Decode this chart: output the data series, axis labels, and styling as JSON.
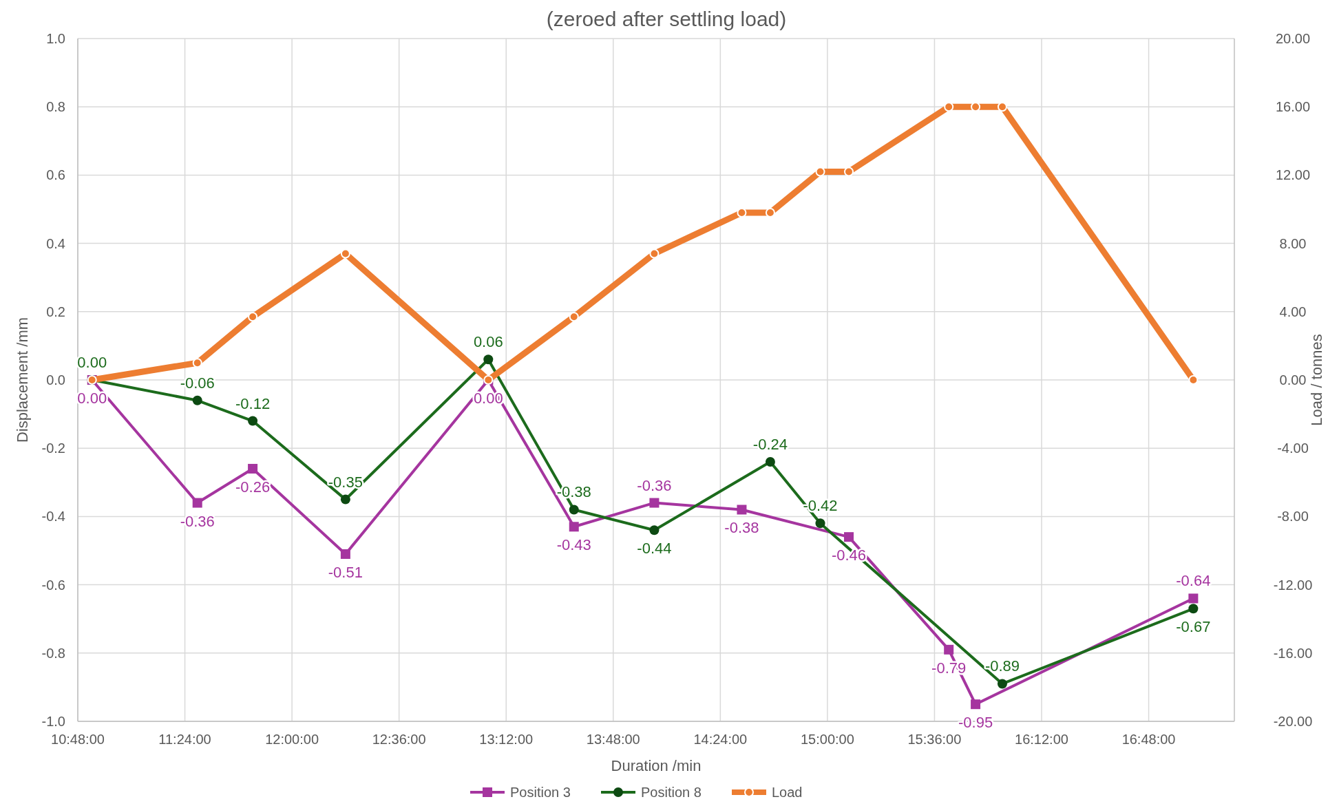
{
  "chart_data": {
    "type": "line",
    "title": "(zeroed after settling load)",
    "xlabel": "Duration /min",
    "ylabel": "Displacement /mm",
    "y2label": "Load / tonnes",
    "xlim": [
      10.8,
      17.28
    ],
    "xticks": [
      {
        "value": 10.8,
        "label": "10:48:00"
      },
      {
        "value": 11.4,
        "label": "11:24:00"
      },
      {
        "value": 12.0,
        "label": "12:00:00"
      },
      {
        "value": 12.6,
        "label": "12:36:00"
      },
      {
        "value": 13.2,
        "label": "13:12:00"
      },
      {
        "value": 13.8,
        "label": "13:48:00"
      },
      {
        "value": 14.4,
        "label": "14:24:00"
      },
      {
        "value": 15.0,
        "label": "15:00:00"
      },
      {
        "value": 15.6,
        "label": "15:36:00"
      },
      {
        "value": 16.2,
        "label": "16:12:00"
      },
      {
        "value": 16.8,
        "label": "16:48:00"
      }
    ],
    "ylim": [
      -1,
      1
    ],
    "yticks": [
      {
        "value": -1,
        "label": "-1.0"
      },
      {
        "value": -0.8,
        "label": "-0.8"
      },
      {
        "value": -0.6,
        "label": "-0.6"
      },
      {
        "value": -0.4,
        "label": "-0.4"
      },
      {
        "value": -0.2,
        "label": "-0.2"
      },
      {
        "value": 0,
        "label": "0.0"
      },
      {
        "value": 0.2,
        "label": "0.2"
      },
      {
        "value": 0.4,
        "label": "0.4"
      },
      {
        "value": 0.6,
        "label": "0.6"
      },
      {
        "value": 0.8,
        "label": "0.8"
      },
      {
        "value": 1,
        "label": "1.0"
      }
    ],
    "y2lim": [
      -20,
      20
    ],
    "y2ticks": [
      {
        "value": -20,
        "label": "-20.00"
      },
      {
        "value": -16,
        "label": "-16.00"
      },
      {
        "value": -12,
        "label": "-12.00"
      },
      {
        "value": -8,
        "label": "-8.00"
      },
      {
        "value": -4,
        "label": "-4.00"
      },
      {
        "value": 0,
        "label": "0.00"
      },
      {
        "value": 4,
        "label": "4.00"
      },
      {
        "value": 8,
        "label": "8.00"
      },
      {
        "value": 12,
        "label": "12.00"
      },
      {
        "value": 16,
        "label": "16.00"
      },
      {
        "value": 20,
        "label": "20.00"
      }
    ],
    "grid": true,
    "legend": "bottom",
    "series": [
      {
        "name": "Position 3",
        "color": "#a5359f",
        "marker": "square",
        "x": [
          10.88,
          11.47,
          11.78,
          12.3,
          13.1,
          13.58,
          14.03,
          14.52,
          15.12,
          15.68,
          15.83,
          17.05
        ],
        "values": [
          0,
          -0.36,
          -0.26,
          -0.51,
          0,
          -0.43,
          -0.36,
          -0.38,
          -0.46,
          -0.79,
          -0.95,
          -0.64
        ],
        "value_labels": [
          "0.00",
          "-0.36",
          "-0.26",
          "-0.51",
          "0.00",
          "-0.43",
          "-0.36",
          "-0.38",
          "-0.46",
          "-0.79",
          "-0.95",
          "-0.64"
        ]
      },
      {
        "name": "Position 8",
        "color": "#1c6b1c",
        "marker": "circle",
        "x": [
          10.88,
          11.47,
          11.78,
          12.3,
          13.1,
          13.58,
          14.03,
          14.68,
          14.96,
          15.98,
          17.05
        ],
        "values": [
          0,
          -0.06,
          -0.12,
          -0.35,
          0.06,
          -0.38,
          -0.44,
          -0.24,
          -0.42,
          -0.89,
          -0.67
        ],
        "value_labels": [
          "0.00",
          "-0.06",
          "-0.12",
          "-0.35",
          "0.06",
          "-0.38",
          "-0.44",
          "-0.24",
          "-0.42",
          "-0.89",
          "-0.67"
        ]
      },
      {
        "name": "Load",
        "color": "#ed7d31",
        "marker": "circle",
        "axis": "y2",
        "x": [
          10.88,
          11.47,
          11.78,
          12.3,
          13.1,
          13.58,
          14.03,
          14.52,
          14.68,
          14.96,
          15.12,
          15.68,
          15.83,
          15.98,
          17.05
        ],
        "values": [
          0,
          1,
          3.7,
          7.4,
          0,
          3.7,
          7.4,
          9.8,
          9.8,
          12.2,
          12.2,
          16,
          16,
          16,
          0
        ]
      }
    ]
  }
}
